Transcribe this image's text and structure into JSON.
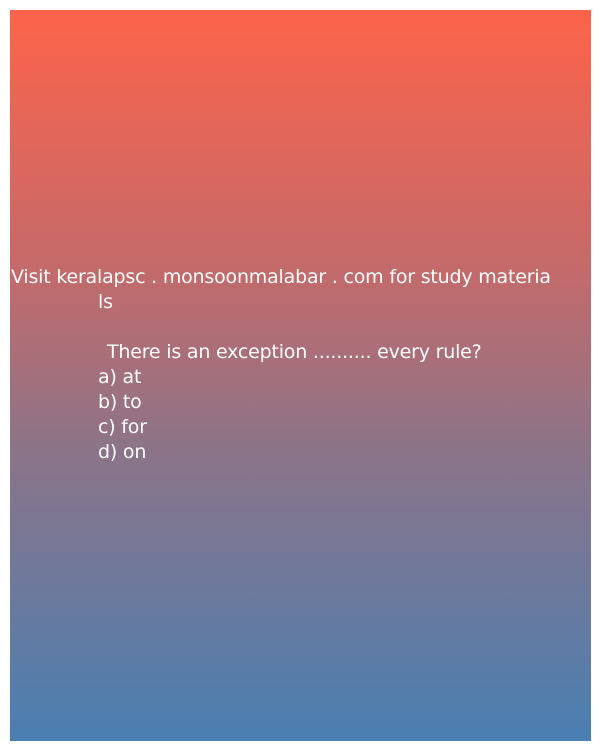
{
  "promo": {
    "line1": "Visit keralapsc . monsoonmalabar . com for study materia",
    "line2": "ls"
  },
  "question": {
    "text": "There is an exception .......... every rule?",
    "options": [
      "a) at",
      "b) to",
      "c) for",
      "d) on"
    ]
  },
  "colors": {
    "gradient_top": "#fd634a",
    "gradient_bottom": "#4a7fb2",
    "text": "#ffffff"
  }
}
